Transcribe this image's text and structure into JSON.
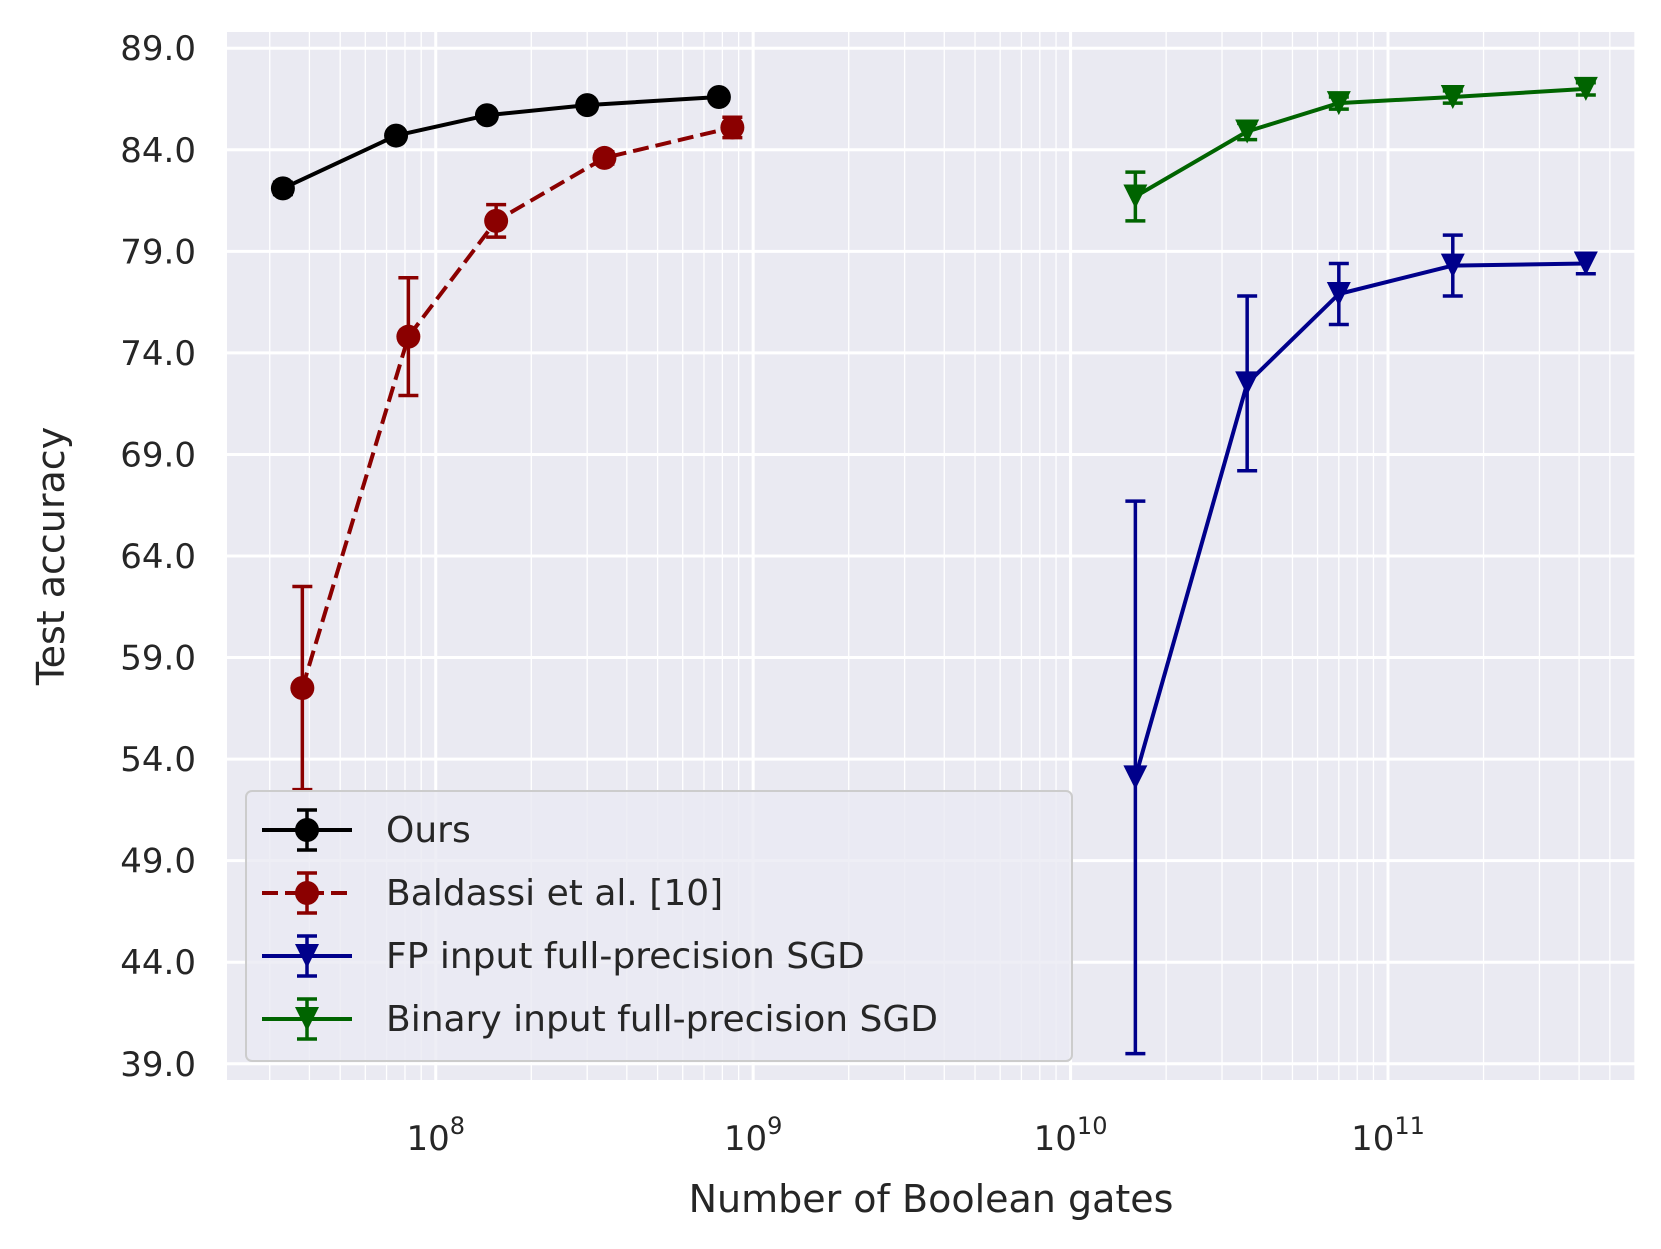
{
  "chart_data": {
    "type": "line",
    "title": "",
    "xlabel": "Number of Boolean gates",
    "ylabel": "Test accuracy",
    "xscale": "log",
    "xlim": [
      22000000.0,
      600000000000.0
    ],
    "ylim": [
      38.2,
      89.8
    ],
    "yticks": [
      {
        "value": 39.0,
        "label": "39.0"
      },
      {
        "value": 44.0,
        "label": "44.0"
      },
      {
        "value": 49.0,
        "label": "49.0"
      },
      {
        "value": 54.0,
        "label": "54.0"
      },
      {
        "value": 59.0,
        "label": "59.0"
      },
      {
        "value": 64.0,
        "label": "64.0"
      },
      {
        "value": 69.0,
        "label": "69.0"
      },
      {
        "value": 74.0,
        "label": "74.0"
      },
      {
        "value": 79.0,
        "label": "79.0"
      },
      {
        "value": 84.0,
        "label": "84.0"
      },
      {
        "value": 89.0,
        "label": "89.0"
      }
    ],
    "xticks": [
      {
        "value": 100000000.0,
        "base": "10",
        "exp": "8"
      },
      {
        "value": 1000000000.0,
        "base": "10",
        "exp": "9"
      },
      {
        "value": 10000000000.0,
        "base": "10",
        "exp": "10"
      },
      {
        "value": 100000000000.0,
        "base": "10",
        "exp": "11"
      }
    ],
    "grid": true,
    "legend_position": "lower-left",
    "series": [
      {
        "name": "Ours",
        "color": "#000000",
        "marker": "circle",
        "linestyle": "solid",
        "x": [
          33000000.0,
          75000000.0,
          145000000.0,
          300000000.0,
          780000000.0
        ],
        "y": [
          82.1,
          84.7,
          85.7,
          86.2,
          86.6
        ],
        "err": [
          0.3,
          0.2,
          0.2,
          0.2,
          0.2
        ]
      },
      {
        "name": "Baldassi et al. [10]",
        "color": "#8b0000",
        "marker": "circle",
        "linestyle": "dashed",
        "x": [
          38000000.0,
          82000000.0,
          155000000.0,
          340000000.0,
          860000000.0
        ],
        "y": [
          57.5,
          74.8,
          80.5,
          83.6,
          85.1
        ],
        "err": [
          5.0,
          2.9,
          0.8,
          0.3,
          0.5
        ]
      },
      {
        "name": "FP input full-precision SGD",
        "color": "#00008b",
        "marker": "triangle-down",
        "linestyle": "solid",
        "x": [
          16000000000.0,
          36000000000.0,
          70000000000.0,
          160000000000.0,
          420000000000.0
        ],
        "y": [
          53.1,
          72.5,
          76.9,
          78.3,
          78.4
        ],
        "err": [
          13.6,
          4.3,
          1.5,
          1.5,
          0.5
        ]
      },
      {
        "name": "Binary input full-precision SGD",
        "color": "#006400",
        "marker": "triangle-down",
        "linestyle": "solid",
        "x": [
          16000000000.0,
          36000000000.0,
          70000000000.0,
          160000000000.0,
          420000000000.0
        ],
        "y": [
          81.7,
          84.9,
          86.3,
          86.6,
          87.0
        ],
        "err": [
          1.2,
          0.4,
          0.3,
          0.3,
          0.3
        ]
      }
    ]
  }
}
